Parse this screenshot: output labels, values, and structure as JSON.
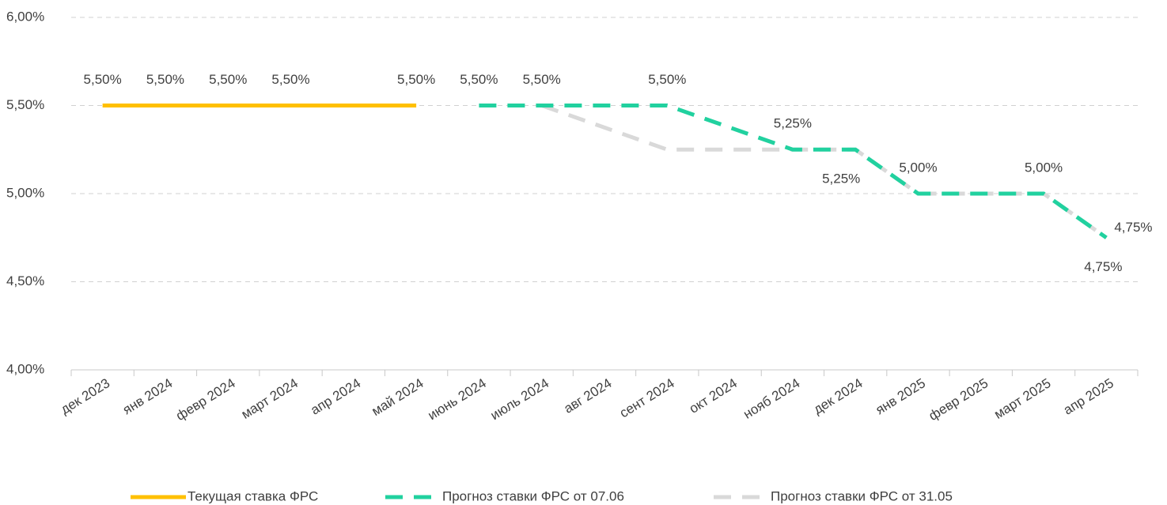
{
  "chart_data": {
    "type": "line",
    "categories": [
      "дек 2023",
      "янв 2024",
      "февр 2024",
      "март 2024",
      "апр 2024",
      "май 2024",
      "июнь 2024",
      "июль 2024",
      "авг 2024",
      "сент 2024",
      "окт 2024",
      "нояб 2024",
      "дек 2024",
      "янв 2025",
      "февр 2025",
      "март 2025",
      "апр 2025"
    ],
    "series": [
      {
        "name": "Текущая ставка ФРС",
        "color": "#ffc000",
        "dashed": false,
        "values": [
          5.5,
          5.5,
          5.5,
          5.5,
          5.5,
          5.5,
          null,
          null,
          null,
          null,
          null,
          null,
          null,
          null,
          null,
          null,
          null
        ],
        "value_labels": [
          "5,50%",
          "5,50%",
          "5,50%",
          "5,50%",
          null,
          "5,50%",
          null,
          null,
          null,
          null,
          null,
          null,
          null,
          null,
          null,
          null,
          null
        ]
      },
      {
        "name": "Прогноз ставки ФРС от 07.06",
        "color": "#21d19f",
        "dashed": true,
        "values": [
          null,
          null,
          null,
          null,
          null,
          null,
          5.5,
          5.5,
          5.5,
          5.5,
          5.375,
          5.25,
          5.25,
          5.0,
          5.0,
          5.0,
          4.75
        ],
        "value_labels": [
          null,
          null,
          null,
          null,
          null,
          null,
          "5,50%",
          "5,50%",
          null,
          "5,50%",
          null,
          "5,25%",
          null,
          "5,00%",
          null,
          "5,00%",
          "4,75%"
        ]
      },
      {
        "name": "Прогноз ставки ФРС от 31.05",
        "color": "#d9d9d9",
        "dashed": true,
        "values": [
          null,
          null,
          null,
          null,
          null,
          null,
          null,
          5.5,
          5.375,
          5.25,
          5.25,
          5.25,
          5.25,
          5.0,
          5.0,
          5.0,
          4.75
        ],
        "value_labels": [
          null,
          null,
          null,
          null,
          null,
          null,
          null,
          null,
          null,
          null,
          null,
          null,
          "5,25%",
          null,
          null,
          null,
          "4,75%"
        ]
      }
    ],
    "ylim": [
      4,
      6
    ],
    "yticks": [
      {
        "value": 4,
        "label": "4,00%"
      },
      {
        "value": 4.5,
        "label": "4,50%"
      },
      {
        "value": 5,
        "label": "5,00%"
      },
      {
        "value": 5.5,
        "label": "5,50%"
      },
      {
        "value": 6,
        "label": "6,00%"
      }
    ],
    "grid": true,
    "legend": "bottom"
  }
}
